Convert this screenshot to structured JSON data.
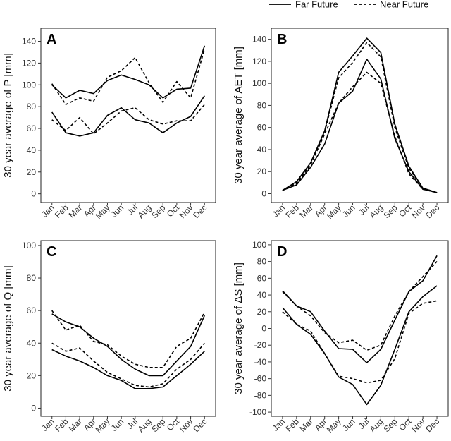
{
  "legend": [
    {
      "label": "Far Future",
      "dash": "solid"
    },
    {
      "label": "Near Future",
      "dash": "dashed"
    }
  ],
  "chart_data": [
    {
      "type": "line",
      "panel": "A",
      "ylabel": "30 year average of P [mm]",
      "categories": [
        "Jan",
        "Feb",
        "Mar",
        "Apr",
        "May",
        "Jun",
        "Jul",
        "Aug",
        "Sep",
        "Oct",
        "Nov",
        "Dec"
      ],
      "ylim": [
        -8,
        152
      ],
      "yticks": [
        0,
        20,
        40,
        60,
        80,
        100,
        120,
        140
      ],
      "series": [
        {
          "name": "Far Future",
          "dash": "solid",
          "values": [
            100,
            88,
            95,
            92,
            104,
            109,
            105,
            100,
            88,
            96,
            97,
            136
          ]
        },
        {
          "name": "Far Future",
          "dash": "solid",
          "values": [
            75,
            56,
            53,
            56,
            72,
            79,
            68,
            65,
            56,
            65,
            71,
            90
          ]
        },
        {
          "name": "Near Future",
          "dash": "dashed",
          "values": [
            101,
            82,
            88,
            85,
            107,
            113,
            125,
            102,
            84,
            103,
            88,
            133
          ]
        },
        {
          "name": "Near Future",
          "dash": "dashed",
          "values": [
            68,
            58,
            70,
            55,
            65,
            76,
            79,
            68,
            64,
            67,
            67,
            82
          ]
        }
      ]
    },
    {
      "type": "line",
      "panel": "B",
      "ylabel": "30 year average of AET [mm]",
      "categories": [
        "Jan",
        "Feb",
        "Mar",
        "Apr",
        "May",
        "Jun",
        "Jul",
        "Aug",
        "Sep",
        "Oct",
        "Nov",
        "Dec"
      ],
      "ylim": [
        -8,
        150
      ],
      "yticks": [
        0,
        20,
        40,
        60,
        80,
        100,
        120,
        140
      ],
      "series": [
        {
          "name": "Far Future",
          "dash": "solid",
          "values": [
            3,
            11,
            28,
            57,
            110,
            125,
            141,
            128,
            63,
            25,
            5,
            1
          ]
        },
        {
          "name": "Far Future",
          "dash": "solid",
          "values": [
            3,
            8,
            24,
            45,
            82,
            93,
            122,
            104,
            50,
            20,
            4,
            1
          ]
        },
        {
          "name": "Near Future",
          "dash": "dashed",
          "values": [
            3,
            10,
            27,
            56,
            105,
            119,
            137,
            124,
            60,
            23,
            5,
            1
          ]
        },
        {
          "name": "Near Future",
          "dash": "dashed",
          "values": [
            3,
            9,
            26,
            54,
            82,
            97,
            110,
            100,
            52,
            18,
            4,
            1
          ]
        }
      ]
    },
    {
      "type": "line",
      "panel": "C",
      "ylabel": "30 year average of Q [mm]",
      "categories": [
        "Jan",
        "Feb",
        "Mar",
        "Apr",
        "May",
        "Jun",
        "Jul",
        "Aug",
        "Sep",
        "Oct",
        "Nov",
        "Dec"
      ],
      "ylim": [
        -5,
        103
      ],
      "yticks": [
        0,
        20,
        40,
        60,
        80,
        100
      ],
      "series": [
        {
          "name": "Far Future",
          "dash": "solid",
          "values": [
            58,
            53,
            50,
            43,
            38,
            30,
            24,
            20,
            20,
            29,
            38,
            57
          ]
        },
        {
          "name": "Far Future",
          "dash": "solid",
          "values": [
            36,
            32,
            29,
            25,
            20,
            17,
            12,
            12,
            13,
            20,
            27,
            35
          ]
        },
        {
          "name": "Near Future",
          "dash": "dashed",
          "values": [
            60,
            48,
            51,
            41,
            39,
            32,
            27,
            25,
            25,
            38,
            43,
            59
          ]
        },
        {
          "name": "Near Future",
          "dash": "dashed",
          "values": [
            40,
            35,
            37,
            29,
            22,
            18,
            14,
            13,
            15,
            24,
            30,
            40
          ]
        }
      ]
    },
    {
      "type": "line",
      "panel": "D",
      "ylabel": "30 year average of ΔS [mm]",
      "categories": [
        "Jan",
        "Feb",
        "Mar",
        "Apr",
        "May",
        "Jun",
        "Jul",
        "Aug",
        "Sep",
        "Oct",
        "Nov",
        "Dec"
      ],
      "ylim": [
        -105,
        105
      ],
      "yticks": [
        -100,
        -80,
        -60,
        -40,
        -20,
        0,
        20,
        40,
        60,
        80,
        100
      ],
      "series": [
        {
          "name": "Far Future",
          "dash": "solid",
          "values": [
            45,
            27,
            20,
            -3,
            -24,
            -25,
            -41,
            -25,
            10,
            44,
            57,
            87
          ]
        },
        {
          "name": "Far Future",
          "dash": "solid",
          "values": [
            25,
            5,
            -7,
            -30,
            -58,
            -67,
            -91,
            -68,
            -25,
            20,
            38,
            51
          ]
        },
        {
          "name": "Near Future",
          "dash": "dashed",
          "values": [
            44,
            27,
            15,
            -5,
            -17,
            -14,
            -26,
            -20,
            15,
            44,
            62,
            80
          ]
        },
        {
          "name": "Near Future",
          "dash": "dashed",
          "values": [
            20,
            5,
            -3,
            -30,
            -57,
            -60,
            -65,
            -62,
            -36,
            18,
            30,
            33
          ]
        }
      ]
    }
  ]
}
